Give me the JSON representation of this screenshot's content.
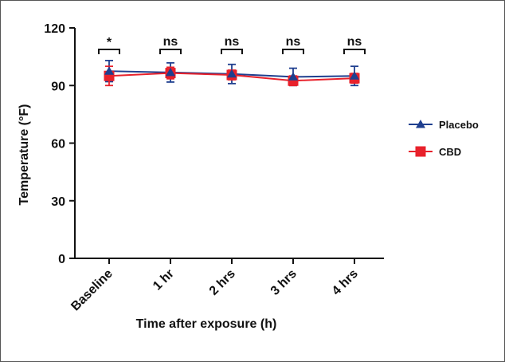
{
  "chart_data": {
    "type": "line",
    "categories": [
      "Baseline",
      "1 hr",
      "2 hrs",
      "3 hrs",
      "4 hrs"
    ],
    "xlabel": "Time after exposure (h)",
    "ylabel": "Temperature (°F)",
    "ylim": [
      0,
      120
    ],
    "yticks": [
      0,
      30,
      60,
      90,
      120
    ],
    "legend_position": "right",
    "series": [
      {
        "name": "Placebo",
        "color": "#1f3f8f",
        "marker": "triangle",
        "values": [
          97.5,
          96.8,
          96.0,
          94.5,
          95.0
        ],
        "error": [
          5.5,
          5.0,
          5.0,
          4.5,
          5.0
        ]
      },
      {
        "name": "CBD",
        "color": "#e8212b",
        "marker": "square",
        "values": [
          95.0,
          96.5,
          95.5,
          92.5,
          93.8
        ],
        "error": [
          5.0,
          3.0,
          2.5,
          2.5,
          2.5
        ]
      }
    ],
    "significance": [
      "*",
      "ns",
      "ns",
      "ns",
      "ns"
    ]
  }
}
